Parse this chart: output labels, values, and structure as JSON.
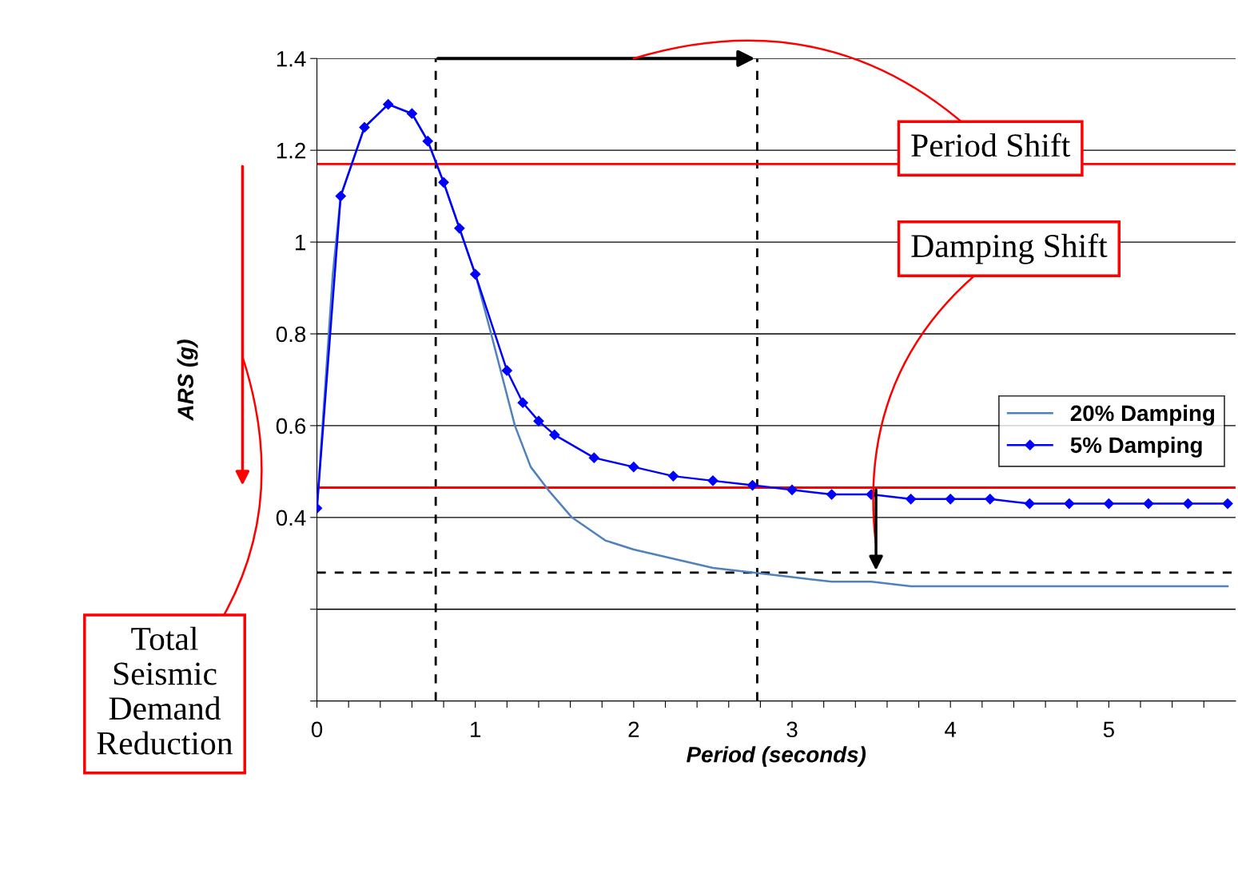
{
  "chart_data": {
    "type": "line",
    "xlabel": "Period (seconds)",
    "ylabel": "ARS (g)",
    "xlim": [
      0,
      5.8
    ],
    "ylim": [
      0,
      1.4
    ],
    "xticks": [
      0,
      {
        "value": 0.2,
        "label": null
      },
      {
        "value": 0.4,
        "label": null
      },
      {
        "value": 0.6,
        "label": null
      },
      {
        "value": 0.8,
        "label": null
      },
      1,
      {
        "value": 1.2,
        "label": null
      },
      {
        "value": 1.4,
        "label": null
      },
      {
        "value": 1.6,
        "label": null
      },
      {
        "value": 1.8,
        "label": null
      },
      2,
      {
        "value": 2.2,
        "label": null
      },
      {
        "value": 2.4,
        "label": null
      },
      {
        "value": 2.6,
        "label": null
      },
      {
        "value": 2.8,
        "label": null
      },
      3,
      {
        "value": 3.2,
        "label": null
      },
      {
        "value": 3.4,
        "label": null
      },
      {
        "value": 3.6,
        "label": null
      },
      {
        "value": 3.8,
        "label": null
      },
      4,
      {
        "value": 4.2,
        "label": null
      },
      {
        "value": 4.4,
        "label": null
      },
      {
        "value": 4.6,
        "label": null
      },
      {
        "value": 4.8,
        "label": null
      },
      5,
      {
        "value": 5.2,
        "label": null
      },
      {
        "value": 5.4,
        "label": null
      },
      {
        "value": 5.6,
        "label": null
      }
    ],
    "yticks": [
      {
        "value": 0,
        "label": null
      },
      {
        "value": 0.2,
        "label": null
      },
      0.4,
      0.6,
      0.8,
      1,
      1.2,
      1.4
    ],
    "grid": "y",
    "legend": "right",
    "series": [
      {
        "name": "20% Damping",
        "color": "#4f81bd",
        "marker": "none",
        "x": [
          0,
          0.1,
          0.15,
          0.3,
          0.45,
          0.6,
          0.7,
          0.8,
          0.9,
          1.0,
          1.1,
          1.25,
          1.35,
          1.46,
          1.61,
          1.82,
          2.0,
          2.25,
          2.5,
          2.75,
          3.0,
          3.25,
          3.5,
          3.75,
          4.0,
          4.5,
          5.0,
          5.5,
          5.75
        ],
        "values": [
          0.42,
          0.93,
          1.1,
          1.25,
          1.3,
          1.28,
          1.22,
          1.13,
          1.03,
          0.93,
          0.8,
          0.6,
          0.51,
          0.46,
          0.4,
          0.35,
          0.33,
          0.31,
          0.29,
          0.28,
          0.27,
          0.26,
          0.26,
          0.25,
          0.25,
          0.25,
          0.25,
          0.25,
          0.25
        ]
      },
      {
        "name": "5% Damping",
        "color": "#0000ff",
        "marker": "diamond",
        "x": [
          0,
          0.15,
          0.3,
          0.45,
          0.6,
          0.7,
          0.8,
          0.9,
          1.0,
          1.2,
          1.3,
          1.4,
          1.5,
          1.75,
          2.0,
          2.25,
          2.5,
          2.75,
          3.0,
          3.25,
          3.5,
          3.75,
          4.0,
          4.25,
          4.5,
          4.75,
          5.0,
          5.25,
          5.5,
          5.75
        ],
        "values": [
          0.42,
          1.1,
          1.25,
          1.3,
          1.28,
          1.22,
          1.13,
          1.03,
          0.93,
          0.72,
          0.65,
          0.61,
          0.58,
          0.53,
          0.51,
          0.49,
          0.48,
          0.47,
          0.46,
          0.45,
          0.45,
          0.44,
          0.44,
          0.44,
          0.43,
          0.43,
          0.43,
          0.43,
          0.43,
          0.43
        ]
      }
    ],
    "ref_lines": [
      {
        "axis": "x",
        "value": 0.75,
        "color": "#000000",
        "line_style": "dashed"
      },
      {
        "axis": "x",
        "value": 2.78,
        "color": "#000000",
        "line_style": "dashed"
      },
      {
        "axis": "y",
        "value": 1.17,
        "color": "#ff0000",
        "line_style": "solid"
      },
      {
        "axis": "y",
        "value": 0.465,
        "color": "#ff0000",
        "line_style": "solid"
      },
      {
        "axis": "y",
        "value": 0.28,
        "color": "#000000",
        "line_style": "dashed"
      }
    ],
    "annotations": [
      "Period Shift",
      "Damping Shift",
      "Total\nSeismic\nDemand\nReduction"
    ]
  }
}
